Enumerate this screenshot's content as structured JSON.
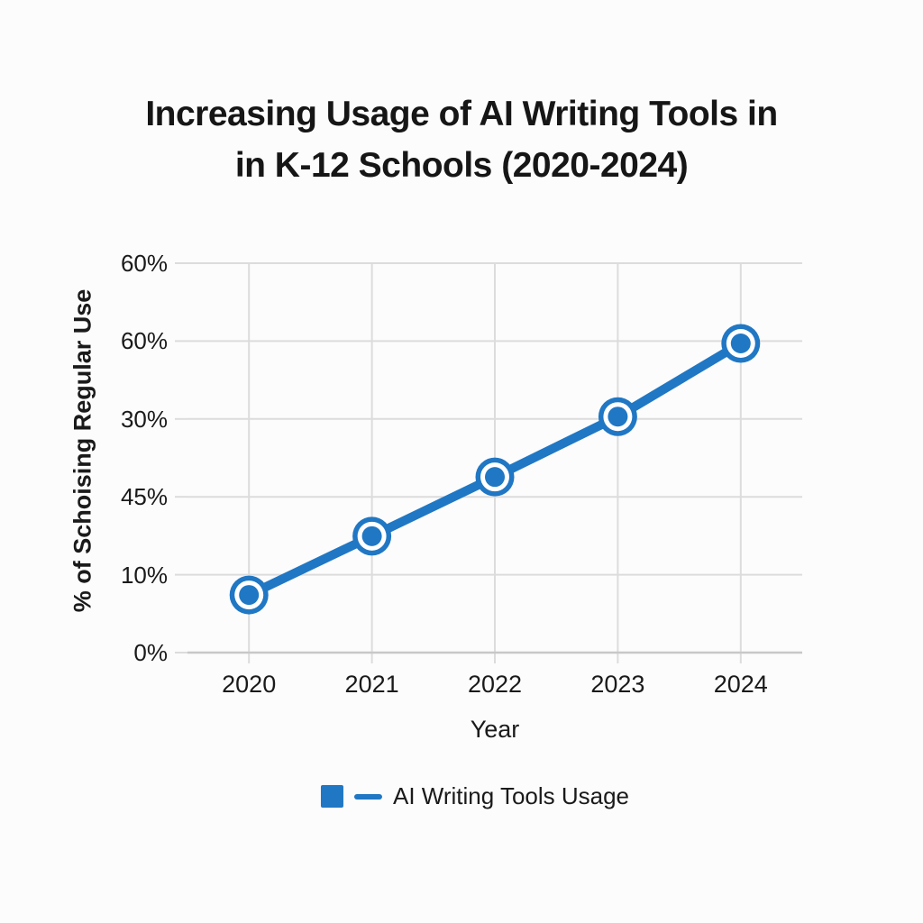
{
  "page": {
    "background_color": "#fcfcfc",
    "text_color": "#1a1a1a"
  },
  "title": {
    "line1": "Increasing Usage of AI Writing Tools in",
    "line2": "in K-12 Schools (2020-2024)"
  },
  "chart_data": {
    "type": "line",
    "title": "Increasing Usage of AI Writing Tools in in K-12 Schools (2020-2024)",
    "xlabel": "Year",
    "ylabel": "% of Schoising Regular Use",
    "categories": [
      "2020",
      "2021",
      "2022",
      "2023",
      "2024"
    ],
    "y_tick_labels_top_to_bottom": [
      "60%",
      "60%",
      "30%",
      "45%",
      "10%",
      "0%"
    ],
    "series": [
      {
        "name": "AI Writing Tools Usage",
        "x": [
          "2020",
          "2021",
          "2022",
          "2023",
          "2024"
        ],
        "y_fraction_of_axis_height": [
          0.148,
          0.299,
          0.451,
          0.606,
          0.794
        ]
      }
    ],
    "grid": true,
    "legend_position": "bottom-center",
    "colors": {
      "line": "#2077c4",
      "marker": "#2077c4",
      "marker_ring": "#ffffff",
      "grid": "#dcdcdc",
      "axis_line": "#c8c8c8"
    }
  },
  "legend": {
    "label": "AI Writing Tools Usage"
  }
}
